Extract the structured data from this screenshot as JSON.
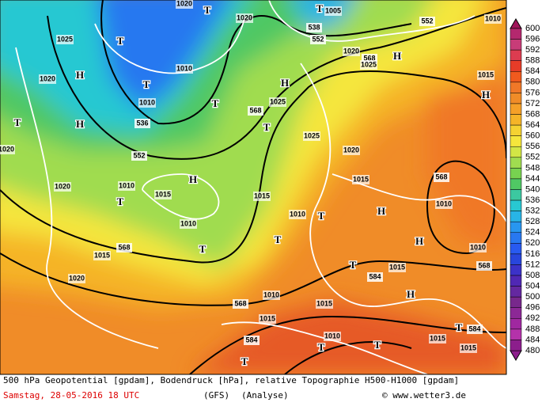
{
  "legend": {
    "values": [
      600,
      596,
      592,
      588,
      584,
      580,
      576,
      572,
      568,
      564,
      560,
      556,
      552,
      548,
      544,
      540,
      536,
      532,
      528,
      524,
      520,
      516,
      512,
      508,
      504,
      500,
      496,
      492,
      488,
      484,
      480
    ],
    "colors": [
      "#a0145a",
      "#b4286e",
      "#c83c78",
      "#dc3c50",
      "#e63c28",
      "#f05a1e",
      "#f07828",
      "#f08c28",
      "#f5a028",
      "#f5b428",
      "#f5d232",
      "#f5e63c",
      "#d2e646",
      "#a0dc50",
      "#78d250",
      "#50c864",
      "#3cc8a0",
      "#28c8d2",
      "#28b4e6",
      "#2896f0",
      "#2878f0",
      "#285af0",
      "#2846dc",
      "#3c32c8",
      "#5028b4",
      "#6428a0",
      "#78288c",
      "#8c2896",
      "#a028a0",
      "#b432aa",
      "#8c1e8c"
    ]
  },
  "map_labels": [
    "T",
    "T",
    "1020",
    "1020",
    "1005",
    "538",
    "552",
    "552",
    "1010",
    "T",
    "1025",
    "1020",
    "568",
    "H",
    "1025",
    "1010",
    "H",
    "1020",
    "T",
    "1015",
    "H",
    "1025",
    "H",
    "1010",
    "T",
    "568",
    "536",
    "H",
    "T",
    "T",
    "1025",
    "1020",
    "552",
    "1020",
    "1010",
    "1020",
    "1015",
    "H",
    "1015",
    "568",
    "T",
    "1015",
    "1010",
    "T",
    "H",
    "1010",
    "1010",
    "T",
    "568",
    "1015",
    "T",
    "H",
    "1010",
    "T",
    "568",
    "1015",
    "584",
    "1020",
    "1010",
    "H",
    "568",
    "1015",
    "1015",
    "T",
    "584",
    "584",
    "1010",
    "1015",
    "T",
    "T",
    "1015",
    "T"
  ],
  "footer": {
    "line1": "500 hPa Geopotential [gpdam], Bodendruck [hPa], relative Topographie H500-H1000 [gpdam]",
    "date": "Samstag, 28-05-2016  18 UTC",
    "model": "(GFS)",
    "run": "(Analyse)",
    "site": "© www.wetter3.de"
  }
}
